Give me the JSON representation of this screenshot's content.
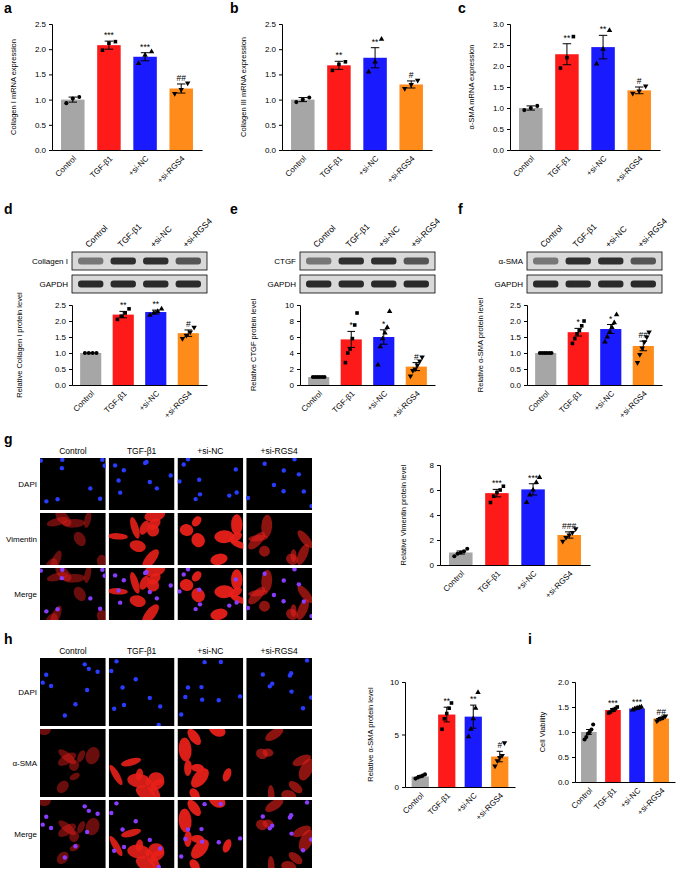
{
  "chart_data": [
    {
      "type": "bar",
      "panel": "a",
      "y_label": "Collagen I mRNA expression",
      "categories": [
        "Control",
        "TGF-β1",
        "+si-NC",
        "+si-RGS4"
      ],
      "colors": [
        "#a6a6a6",
        "#ff1a1a",
        "#1a1aff",
        "#ff8c1a"
      ],
      "values": [
        1.0,
        2.08,
        1.85,
        1.22
      ],
      "errors": [
        0.05,
        0.08,
        0.08,
        0.09
      ],
      "points": [
        [
          0.93,
          1.02,
          1.05
        ],
        [
          1.98,
          2.12,
          2.15
        ],
        [
          1.72,
          1.88,
          1.95
        ],
        [
          1.12,
          1.2,
          1.33
        ]
      ],
      "annotations": [
        null,
        "***",
        "***",
        "##"
      ],
      "ylim": [
        0,
        2.5
      ],
      "yticks": [
        {
          "value": 0,
          "label": "0.0"
        },
        0.5,
        {
          "value": 1,
          "label": "1.0"
        },
        1.5,
        {
          "value": 2,
          "label": "2.0"
        },
        2.5
      ]
    },
    {
      "type": "bar",
      "panel": "b",
      "y_label": "Collagen III mRNA expression",
      "categories": [
        "Control",
        "TGF-β1",
        "+si-NC",
        "+si-RGS4"
      ],
      "colors": [
        "#a6a6a6",
        "#ff1a1a",
        "#1a1aff",
        "#ff8c1a"
      ],
      "values": [
        1.0,
        1.68,
        1.83,
        1.3
      ],
      "errors": [
        0.04,
        0.08,
        0.2,
        0.07
      ],
      "points": [
        [
          0.95,
          1.0,
          1.04
        ],
        [
          1.58,
          1.7,
          1.75
        ],
        [
          1.55,
          1.75,
          2.2
        ],
        [
          1.22,
          1.3,
          1.38
        ]
      ],
      "annotations": [
        null,
        "**",
        "**",
        "#"
      ],
      "ylim": [
        0,
        2.5
      ],
      "yticks": [
        {
          "value": 0,
          "label": "0.0"
        },
        0.5,
        {
          "value": 1,
          "label": "1.0"
        },
        1.5,
        {
          "value": 2,
          "label": "2.0"
        },
        2.5
      ]
    },
    {
      "type": "bar",
      "panel": "c",
      "y_label": "α-SMA mRNA expression",
      "categories": [
        "Control",
        "TGF-β1",
        "+si-NC",
        "+si-RGS4"
      ],
      "colors": [
        "#a6a6a6",
        "#ff1a1a",
        "#1a1aff",
        "#ff8c1a"
      ],
      "values": [
        1.0,
        2.28,
        2.45,
        1.42
      ],
      "errors": [
        0.05,
        0.25,
        0.28,
        0.08
      ],
      "points": [
        [
          0.95,
          1.0,
          1.05
        ],
        [
          1.95,
          2.2,
          2.7
        ],
        [
          2.05,
          2.4,
          2.85
        ],
        [
          1.35,
          1.4,
          1.52
        ]
      ],
      "annotations": [
        null,
        "**",
        "**",
        "#"
      ],
      "ylim": [
        0,
        3
      ],
      "yticks": [
        {
          "value": 0,
          "label": "0.0"
        },
        0.5,
        {
          "value": 1,
          "label": "1.0"
        },
        1.5,
        {
          "value": 2,
          "label": "2.0"
        },
        2.5,
        {
          "value": 3,
          "label": "3.0"
        }
      ]
    },
    {
      "type": "bar",
      "panel": "d",
      "y_label": "Relative Collagen I protein level",
      "blot_labels": [
        "Collagen I",
        "GAPDH"
      ],
      "categories": [
        "Control",
        "TGF-β1",
        "+si-NC",
        "+si-RGS4"
      ],
      "colors": [
        "#a6a6a6",
        "#ff1a1a",
        "#1a1aff",
        "#ff8c1a"
      ],
      "values": [
        1.0,
        2.2,
        2.28,
        1.62
      ],
      "errors": [
        0.0,
        0.1,
        0.06,
        0.1
      ],
      "points": [
        [
          1.0,
          1.0,
          1.0,
          1.0
        ],
        [
          2.05,
          2.15,
          2.25,
          2.38
        ],
        [
          2.18,
          2.25,
          2.3,
          2.38
        ],
        [
          1.45,
          1.55,
          1.65,
          1.8
        ]
      ],
      "annotations": [
        null,
        "**",
        "**",
        "#"
      ],
      "ylim": [
        0,
        2.5
      ],
      "yticks": [
        {
          "value": 0,
          "label": "0.0"
        },
        0.5,
        {
          "value": 1,
          "label": "1.0"
        },
        1.5,
        {
          "value": 2,
          "label": "2.0"
        },
        2.5
      ]
    },
    {
      "type": "bar",
      "panel": "e",
      "y_label": "Relative CTGF protein level",
      "blot_labels": [
        "CTGF",
        "GAPDH"
      ],
      "categories": [
        "Control",
        "TGF-β1",
        "+si-NC",
        "+si-RGS4"
      ],
      "colors": [
        "#a6a6a6",
        "#ff1a1a",
        "#1a1aff",
        "#ff8c1a"
      ],
      "values": [
        1.0,
        5.7,
        6.0,
        2.3
      ],
      "errors": [
        0.05,
        1.0,
        0.9,
        0.5
      ],
      "points": [
        [
          1.0,
          1.0,
          1.0,
          1.0,
          1.0,
          1.0
        ],
        [
          2.8,
          4.0,
          4.5,
          5.8,
          7.5,
          9.0
        ],
        [
          2.5,
          4.8,
          5.8,
          6.5,
          7.2,
          9.2
        ],
        [
          1.1,
          1.8,
          2.0,
          2.5,
          3.0,
          3.5
        ]
      ],
      "annotations": [
        null,
        "*",
        "*",
        "#"
      ],
      "ylim": [
        0,
        10
      ],
      "yticks": [
        0,
        2,
        4,
        6,
        8,
        10
      ]
    },
    {
      "type": "bar",
      "panel": "f",
      "y_label": "Relative α-SMA protein level",
      "blot_labels": [
        "α-SMA",
        "GAPDH"
      ],
      "categories": [
        "Control",
        "TGF-β1",
        "+si-NC",
        "+si-RGS4"
      ],
      "colors": [
        "#a6a6a6",
        "#ff1a1a",
        "#1a1aff",
        "#ff8c1a"
      ],
      "values": [
        1.0,
        1.65,
        1.75,
        1.22
      ],
      "errors": [
        0.01,
        0.12,
        0.14,
        0.15
      ],
      "points": [
        [
          1.0,
          1.0,
          1.0,
          1.0,
          1.0,
          1.0
        ],
        [
          1.3,
          1.45,
          1.6,
          1.7,
          1.85,
          2.0
        ],
        [
          1.35,
          1.5,
          1.65,
          1.8,
          1.95,
          2.2
        ],
        [
          0.7,
          0.95,
          1.15,
          1.35,
          1.5,
          1.65
        ]
      ],
      "annotations": [
        null,
        "*",
        "*",
        "##"
      ],
      "ylim": [
        0,
        2.5
      ],
      "yticks": [
        {
          "value": 0,
          "label": "0.0"
        },
        0.5,
        {
          "value": 1,
          "label": "1.0"
        },
        1.5,
        {
          "value": 2,
          "label": "2.0"
        },
        2.5
      ]
    },
    {
      "type": "bar",
      "panel": "g",
      "y_label": "Relative Vimentin protein level",
      "image_rows": [
        "DAPI",
        "Vimentin",
        "Merge"
      ],
      "categories": [
        "Control",
        "TGF-β1",
        "+si-NC",
        "+si-RGS4"
      ],
      "colors": [
        "#a6a6a6",
        "#ff1a1a",
        "#1a1aff",
        "#ff8c1a"
      ],
      "values": [
        1.0,
        5.75,
        6.05,
        2.4
      ],
      "errors": [
        0.12,
        0.3,
        0.45,
        0.25
      ],
      "points": [
        [
          0.7,
          0.9,
          1.0,
          1.1,
          1.3
        ],
        [
          5.0,
          5.5,
          5.8,
          6.0,
          6.3
        ],
        [
          5.0,
          5.6,
          6.0,
          6.6,
          7.0
        ],
        [
          1.9,
          2.2,
          2.4,
          2.6,
          2.9
        ]
      ],
      "annotations": [
        null,
        "***",
        "***",
        "###"
      ],
      "ylim": [
        0,
        8
      ],
      "yticks": [
        0,
        2,
        4,
        6,
        8
      ]
    },
    {
      "type": "bar",
      "panel": "h",
      "y_label": "Relative α-SMA protein level",
      "image_rows": [
        "DAPI",
        "α-SMA",
        "Merge"
      ],
      "categories": [
        "Control",
        "TGF-β1",
        "+si-NC",
        "+si-RGS4"
      ],
      "colors": [
        "#a6a6a6",
        "#ff1a1a",
        "#1a1aff",
        "#ff8c1a"
      ],
      "values": [
        1.0,
        6.9,
        6.7,
        2.9
      ],
      "errors": [
        0.1,
        0.7,
        1.1,
        0.5
      ],
      "points": [
        [
          0.8,
          0.9,
          1.0,
          1.1,
          1.2
        ],
        [
          5.5,
          6.5,
          7.0,
          7.5,
          8.0
        ],
        [
          4.8,
          5.5,
          6.5,
          7.5,
          9.0
        ],
        [
          2.0,
          2.5,
          2.8,
          3.0,
          4.2
        ]
      ],
      "annotations": [
        null,
        "**",
        "**",
        "#"
      ],
      "ylim": [
        0,
        10
      ],
      "yticks": [
        0,
        5,
        10
      ]
    },
    {
      "type": "bar",
      "panel": "i",
      "y_label": "Cell Viability",
      "categories": [
        "Control",
        "TGF-β1",
        "+si-NC",
        "+si-RGS4"
      ],
      "colors": [
        "#a6a6a6",
        "#ff1a1a",
        "#1a1aff",
        "#ff8c1a"
      ],
      "values": [
        1.0,
        1.44,
        1.47,
        1.27
      ],
      "errors": [
        0.05,
        0.03,
        0.02,
        0.02
      ],
      "points": [
        [
          0.85,
          0.9,
          0.97,
          1.0,
          1.05,
          1.15
        ],
        [
          1.38,
          1.4,
          1.43,
          1.45,
          1.47,
          1.5
        ],
        [
          1.44,
          1.46,
          1.47,
          1.48,
          1.49,
          1.5
        ],
        [
          1.22,
          1.25,
          1.27,
          1.28,
          1.3,
          1.32
        ]
      ],
      "annotations": [
        null,
        "***",
        "***",
        "##"
      ],
      "ylim": [
        0,
        2
      ],
      "yticks": [
        {
          "value": 0,
          "label": "0.0"
        },
        0.5,
        {
          "value": 1,
          "label": "1.0"
        },
        1.5,
        {
          "value": 2,
          "label": "2.0"
        }
      ]
    }
  ]
}
